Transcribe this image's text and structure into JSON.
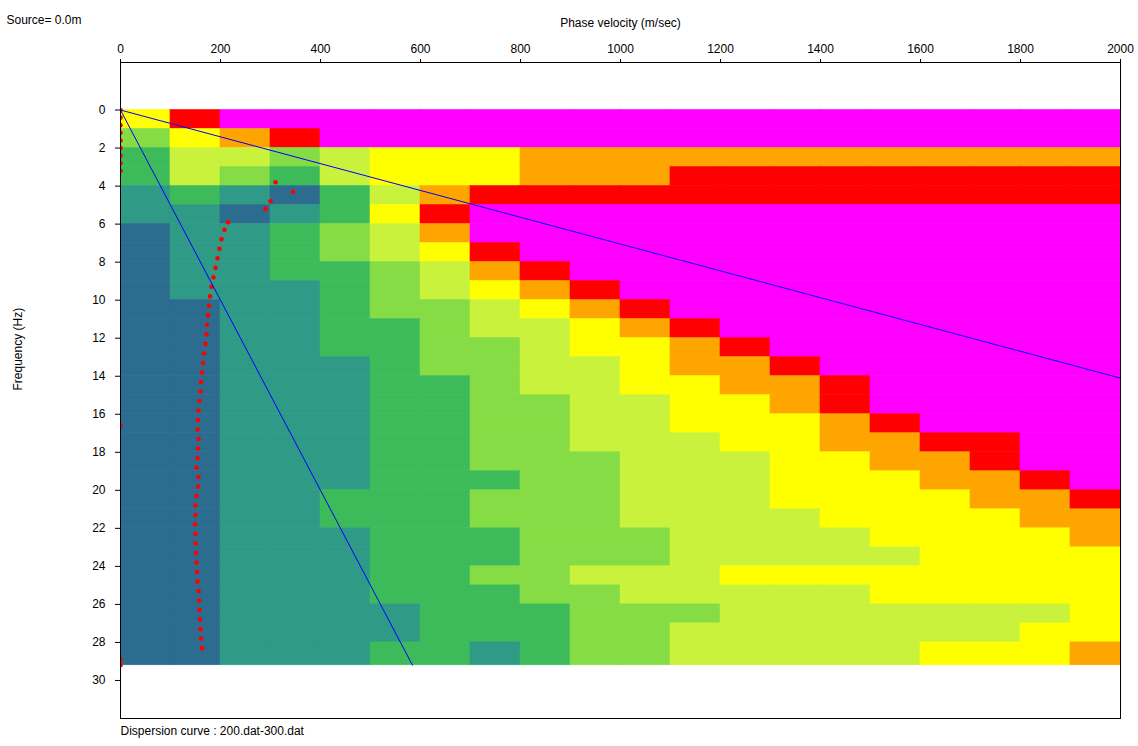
{
  "chart_data": {
    "type": "heatmap",
    "title": "Source= 0.0m",
    "caption": "Dispersion curve : 200.dat-300.dat",
    "x_label": "Phase velocity (m/sec)",
    "y_label": "Frequency (Hz)",
    "xlim": [
      0,
      2000
    ],
    "xticks": [
      0,
      200,
      400,
      600,
      800,
      1000,
      1200,
      1400,
      1600,
      1800,
      2000
    ],
    "ylim": [
      -2.5,
      32
    ],
    "yticks": [
      0,
      2,
      4,
      6,
      8,
      10,
      12,
      14,
      16,
      18,
      20,
      22,
      24,
      26,
      28,
      30
    ],
    "grid": false,
    "cells": {
      "x_bins": [
        0,
        100,
        200,
        300,
        400,
        500,
        600,
        700,
        800,
        900,
        1000,
        1100,
        1200,
        1300,
        1400,
        1500,
        1600,
        1700,
        1800,
        1900,
        2000
      ],
      "y_bins": [
        0,
        1,
        2,
        3,
        4,
        5,
        6,
        7,
        8,
        9,
        10,
        11,
        12,
        13,
        14,
        15,
        16,
        17,
        18,
        19,
        20,
        21,
        22,
        23,
        24,
        25,
        26,
        27,
        28,
        29.2
      ],
      "z": [
        [
          5,
          7,
          8,
          8,
          8,
          8,
          8,
          8,
          8,
          8,
          8,
          8,
          8,
          8,
          8,
          8,
          8,
          8,
          8,
          8
        ],
        [
          3,
          5,
          6,
          7,
          8,
          8,
          8,
          8,
          8,
          8,
          8,
          8,
          8,
          8,
          8,
          8,
          8,
          8,
          8,
          8
        ],
        [
          2,
          4,
          4,
          3,
          4,
          5,
          5,
          5,
          6,
          6,
          6,
          6,
          6,
          6,
          6,
          6,
          6,
          6,
          6,
          6
        ],
        [
          2,
          4,
          3,
          2,
          4,
          5,
          5,
          5,
          6,
          6,
          6,
          7,
          7,
          7,
          7,
          7,
          7,
          7,
          7,
          7
        ],
        [
          1,
          2,
          1,
          0,
          2,
          4,
          6,
          7,
          7,
          7,
          7,
          7,
          7,
          7,
          7,
          7,
          7,
          7,
          7,
          7
        ],
        [
          1,
          1,
          0,
          1,
          2,
          5,
          7,
          8,
          8,
          8,
          8,
          8,
          8,
          8,
          8,
          8,
          8,
          8,
          8,
          8
        ],
        [
          0,
          1,
          1,
          2,
          3,
          4,
          6,
          8,
          8,
          8,
          8,
          8,
          8,
          8,
          8,
          8,
          8,
          8,
          8,
          8
        ],
        [
          0,
          1,
          1,
          2,
          3,
          4,
          5,
          7,
          8,
          8,
          8,
          8,
          8,
          8,
          8,
          8,
          8,
          8,
          8,
          8
        ],
        [
          0,
          1,
          1,
          2,
          2,
          3,
          4,
          6,
          7,
          8,
          8,
          8,
          8,
          8,
          8,
          8,
          8,
          8,
          8,
          8
        ],
        [
          0,
          1,
          1,
          1,
          2,
          3,
          4,
          5,
          6,
          7,
          8,
          8,
          8,
          8,
          8,
          8,
          8,
          8,
          8,
          8
        ],
        [
          0,
          0,
          1,
          1,
          2,
          3,
          3,
          4,
          5,
          6,
          7,
          8,
          8,
          8,
          8,
          8,
          8,
          8,
          8,
          8
        ],
        [
          0,
          0,
          1,
          1,
          2,
          2,
          3,
          4,
          4,
          5,
          6,
          7,
          8,
          8,
          8,
          8,
          8,
          8,
          8,
          8
        ],
        [
          0,
          0,
          1,
          1,
          2,
          2,
          3,
          3,
          4,
          5,
          5,
          6,
          7,
          8,
          8,
          8,
          8,
          8,
          8,
          8
        ],
        [
          0,
          0,
          1,
          1,
          1,
          2,
          3,
          3,
          4,
          4,
          5,
          6,
          6,
          7,
          8,
          8,
          8,
          8,
          8,
          8
        ],
        [
          0,
          0,
          1,
          1,
          1,
          2,
          2,
          3,
          4,
          4,
          5,
          5,
          6,
          6,
          7,
          8,
          8,
          8,
          8,
          8
        ],
        [
          0,
          0,
          1,
          1,
          1,
          2,
          2,
          3,
          3,
          4,
          4,
          5,
          5,
          6,
          7,
          8,
          8,
          8,
          8,
          8
        ],
        [
          0,
          0,
          1,
          1,
          1,
          2,
          2,
          3,
          3,
          4,
          4,
          5,
          5,
          5,
          6,
          7,
          8,
          8,
          8,
          8
        ],
        [
          0,
          0,
          1,
          1,
          1,
          2,
          2,
          3,
          3,
          4,
          4,
          4,
          5,
          5,
          6,
          6,
          7,
          7,
          8,
          8
        ],
        [
          0,
          0,
          1,
          1,
          1,
          2,
          2,
          3,
          3,
          3,
          4,
          4,
          4,
          5,
          5,
          6,
          6,
          7,
          8,
          8
        ],
        [
          0,
          0,
          1,
          1,
          1,
          2,
          2,
          2,
          3,
          3,
          4,
          4,
          4,
          5,
          5,
          5,
          6,
          6,
          7,
          8
        ],
        [
          0,
          0,
          1,
          1,
          2,
          2,
          2,
          3,
          3,
          3,
          4,
          4,
          4,
          5,
          5,
          5,
          5,
          6,
          6,
          7
        ],
        [
          0,
          0,
          1,
          1,
          2,
          2,
          2,
          3,
          3,
          3,
          4,
          4,
          4,
          4,
          5,
          5,
          5,
          5,
          6,
          6
        ],
        [
          0,
          0,
          1,
          1,
          1,
          2,
          2,
          2,
          3,
          3,
          3,
          4,
          4,
          4,
          4,
          5,
          5,
          5,
          5,
          6
        ],
        [
          0,
          0,
          1,
          1,
          1,
          2,
          2,
          2,
          3,
          3,
          3,
          4,
          4,
          4,
          4,
          4,
          5,
          5,
          5,
          5
        ],
        [
          0,
          0,
          1,
          1,
          1,
          2,
          2,
          3,
          3,
          4,
          4,
          4,
          5,
          5,
          5,
          5,
          5,
          5,
          5,
          5
        ],
        [
          0,
          0,
          1,
          1,
          1,
          2,
          2,
          2,
          3,
          3,
          4,
          4,
          4,
          4,
          4,
          5,
          5,
          5,
          5,
          5
        ],
        [
          0,
          0,
          1,
          1,
          1,
          1,
          2,
          2,
          2,
          3,
          3,
          3,
          4,
          4,
          4,
          4,
          4,
          4,
          4,
          5
        ],
        [
          0,
          0,
          1,
          1,
          1,
          1,
          2,
          2,
          2,
          3,
          3,
          4,
          4,
          4,
          4,
          4,
          4,
          4,
          5,
          5
        ],
        [
          0,
          0,
          1,
          1,
          1,
          2,
          2,
          1,
          2,
          3,
          3,
          4,
          4,
          4,
          4,
          4,
          5,
          5,
          5,
          6
        ]
      ]
    },
    "zlim": [
      0,
      8
    ],
    "series": [
      {
        "type": "scatter",
        "color": "#ff0000",
        "marker": "circle",
        "x": [
          0,
          0,
          0,
          0,
          0,
          0,
          0,
          0,
          0,
          310,
          345,
          300,
          290,
          215,
          208,
          202,
          198,
          194,
          190,
          186,
          182,
          179,
          177,
          175,
          173,
          172,
          170,
          167,
          165,
          163,
          161,
          160,
          158,
          156,
          155,
          154,
          156,
          155,
          154,
          152,
          156,
          155,
          152,
          150,
          150,
          149,
          150,
          150,
          151,
          152,
          153,
          154,
          156,
          157,
          158,
          159,
          160,
          161,
          163,
          0,
          0,
          0
        ],
        "values": [
          0,
          0.4,
          0.8,
          1.2,
          1.6,
          2.0,
          2.4,
          2.8,
          3.2,
          3.8,
          4.3,
          4.8,
          5.2,
          5.9,
          6.3,
          6.8,
          7.3,
          7.8,
          8.3,
          8.8,
          9.3,
          9.8,
          10.3,
          10.8,
          11.3,
          11.8,
          12.3,
          12.8,
          13.3,
          13.8,
          14.3,
          14.8,
          15.3,
          15.8,
          16.3,
          16.8,
          17.3,
          17.8,
          18.3,
          18.8,
          19.3,
          19.8,
          20.3,
          20.8,
          21.3,
          21.8,
          22.3,
          22.8,
          23.3,
          23.8,
          24.3,
          24.8,
          25.3,
          25.8,
          26.3,
          26.8,
          27.3,
          27.8,
          28.3,
          16.6,
          28.9,
          29.2
        ]
      },
      {
        "type": "line",
        "color": "#0000ff",
        "line_style": "solid",
        "x": [
          0,
          2000
        ],
        "values": [
          0,
          14.1
        ]
      },
      {
        "type": "line",
        "color": "#0000ff",
        "line_style": "solid",
        "x": [
          0,
          584
        ],
        "values": [
          0,
          29.2
        ]
      }
    ]
  }
}
